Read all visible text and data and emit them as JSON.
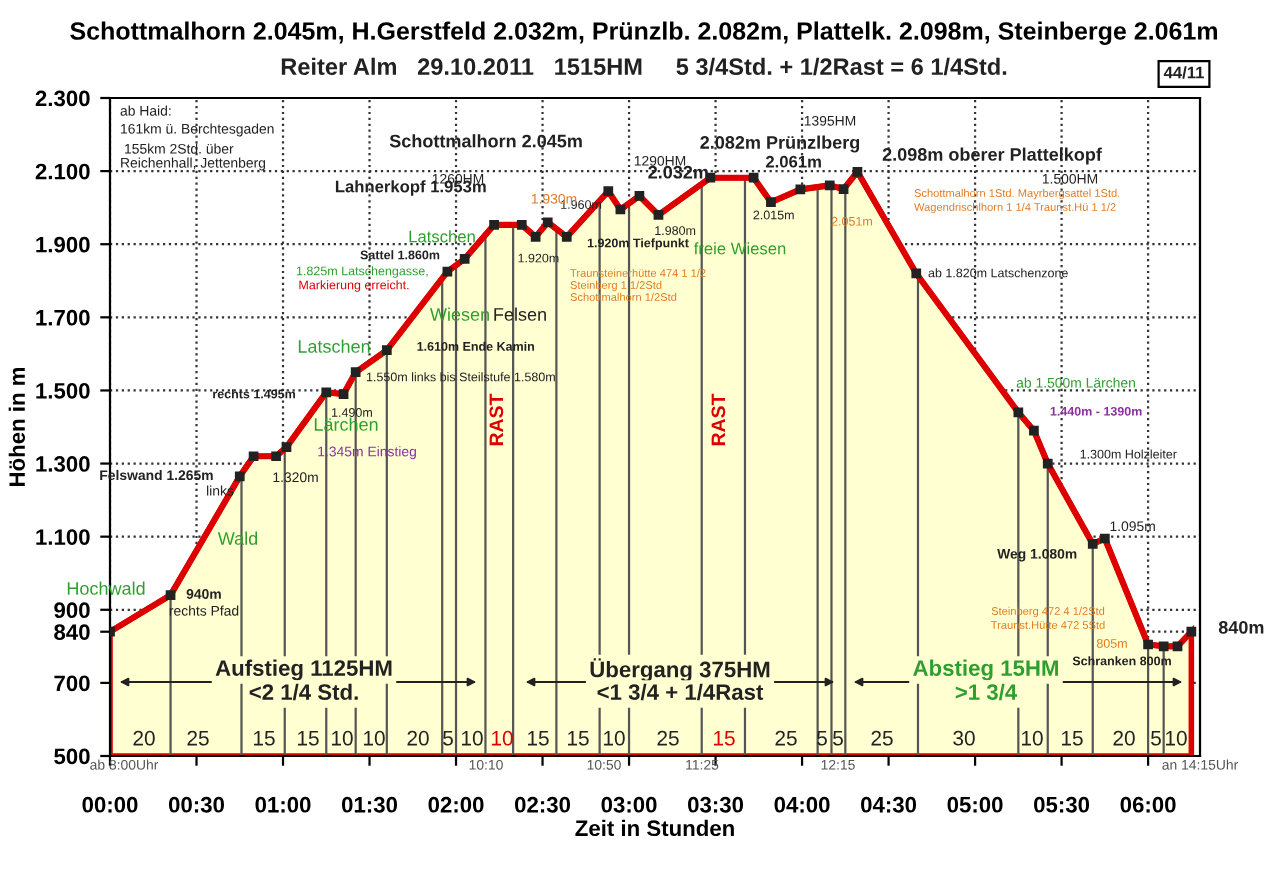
{
  "chart_data": {
    "type": "area",
    "title": "Schottmalhorn 2.045m, H.Gerstfeld 2.032m, Prünzlb. 2.082m, Plattelk. 2.098m, Steinberge 2.061m",
    "subtitle": "Reiter Alm   29.10.2011   1515HM     5 3/4Std. + 1/2Rast = 6 1/4Std.",
    "xlabel": "Zeit in Stunden",
    "ylabel": "Höhen in m",
    "x": [
      0,
      0.35,
      0.75,
      0.83,
      0.96,
      1.02,
      1.25,
      1.35,
      1.42,
      1.6,
      1.95,
      2.05,
      2.22,
      2.38,
      2.46,
      2.53,
      2.64,
      2.88,
      2.95,
      3.06,
      3.17,
      3.47,
      3.72,
      3.82,
      3.99,
      4.16,
      4.24,
      4.32,
      4.66,
      5.25,
      5.34,
      5.42,
      5.68,
      5.75,
      6.0,
      6.09,
      6.17,
      6.25
    ],
    "series": [
      {
        "color": "#dd0000",
        "values": [
          840,
          940,
          1265,
          1320,
          1320,
          1345,
          1495,
          1490,
          1550,
          1610,
          1825,
          1860,
          1953,
          1953,
          1920,
          1960,
          1920,
          2045,
          1995,
          2032,
          1980,
          2082,
          2082,
          2015,
          2050,
          2061,
          2051,
          2098,
          1820,
          1440,
          1390,
          1300,
          1080,
          1095,
          805,
          800,
          800,
          840
        ]
      }
    ],
    "marker": "square",
    "grid": true,
    "xlim": [
      0,
      6.3
    ],
    "ylim": [
      500,
      2300
    ],
    "xticks": [
      {
        "value": 0,
        "label": "00:00"
      },
      {
        "value": 0.5,
        "label": "00:30"
      },
      {
        "value": 1,
        "label": "01:00"
      },
      {
        "value": 1.5,
        "label": "01:30"
      },
      {
        "value": 2,
        "label": "02:00"
      },
      {
        "value": 2.5,
        "label": "02:30"
      },
      {
        "value": 3,
        "label": "03:00"
      },
      {
        "value": 3.5,
        "label": "03:30"
      },
      {
        "value": 4,
        "label": "04:00"
      },
      {
        "value": 4.5,
        "label": "04:30"
      },
      {
        "value": 5,
        "label": "05:00"
      },
      {
        "value": 5.5,
        "label": "05:30"
      },
      {
        "value": 6,
        "label": "06:00"
      }
    ],
    "yticks": [
      500,
      700,
      840,
      900,
      {
        "value": 1100,
        "label": "1.100"
      },
      {
        "value": 1300,
        "label": "1.300"
      },
      {
        "value": 1500,
        "label": "1.500"
      },
      {
        "value": 1700,
        "label": "1.700"
      },
      {
        "value": 1900,
        "label": "1.900"
      },
      {
        "value": 2100,
        "label": "2.100"
      },
      {
        "value": 2300,
        "label": "2.300"
      }
    ],
    "ref_lines": [
      {
        "axis": "x",
        "value": 0.35
      },
      {
        "axis": "x",
        "value": 0.76
      },
      {
        "axis": "x",
        "value": 1.01
      },
      {
        "axis": "x",
        "value": 1.25
      },
      {
        "axis": "x",
        "value": 1.42
      },
      {
        "axis": "x",
        "value": 1.6
      },
      {
        "axis": "x",
        "value": 1.92
      },
      {
        "axis": "x",
        "value": 2.0
      },
      {
        "axis": "x",
        "value": 2.17
      },
      {
        "axis": "x",
        "value": 2.33
      },
      {
        "axis": "x",
        "value": 2.58
      },
      {
        "axis": "x",
        "value": 2.83
      },
      {
        "axis": "x",
        "value": 3.0
      },
      {
        "axis": "x",
        "value": 3.42
      },
      {
        "axis": "x",
        "value": 3.67
      },
      {
        "axis": "x",
        "value": 4.09
      },
      {
        "axis": "x",
        "value": 4.17
      },
      {
        "axis": "x",
        "value": 4.25
      },
      {
        "axis": "x",
        "value": 4.67
      },
      {
        "axis": "x",
        "value": 5.25
      },
      {
        "axis": "x",
        "value": 5.42
      },
      {
        "axis": "x",
        "value": 5.68
      },
      {
        "axis": "x",
        "value": 6.0
      },
      {
        "axis": "x",
        "value": 6.09
      }
    ],
    "annotations": [
      "ab Haid:",
      "161km ü. Berchtesgaden",
      "155km 2Std. über",
      "Reichenhall, Jettenberg",
      "44/11",
      {
        "text": "Schottmalhorn 2.045m",
        "x": 2.88,
        "y": 2045
      },
      "1260HM",
      {
        "text": "Lahnerkopf 1.953m",
        "x": 2.22,
        "y": 1953
      },
      "1.930m",
      {
        "text": "1.960m",
        "x": 2.53,
        "y": 1960
      },
      {
        "text": "1.920m",
        "x": 2.46,
        "y": 1920
      },
      "1.920m Tiefpunkt",
      "1290HM",
      {
        "text": "2.032m",
        "x": 3.06,
        "y": 2032
      },
      {
        "text": "1.980m",
        "x": 3.17,
        "y": 1980
      },
      "freie Wiesen",
      "1395HM",
      "2.082m Prünzlberg",
      {
        "text": "2.061m",
        "x": 4.16,
        "y": 2061
      },
      {
        "text": "2.015m",
        "x": 3.82,
        "y": 2015
      },
      {
        "text": "2.051m",
        "x": 4.24,
        "y": 2051
      },
      "2.098m oberer Plattelkopf",
      "1.500HM",
      "Schottmalhorn 1Std. Mayrbergsattel 1Std.",
      "Wagendrischlhorn 1 1/4 Traunst.Hü 1 1/2",
      "Latschen",
      "Sattel 1.860m",
      "1.825m Latschengasse,",
      "Markierung erreicht.",
      "Traunsteinerhütte 474 1 1/2",
      "Steinberg 1 1/2Std",
      "Schottmalhorn 1/2Std",
      "Wiesen",
      "Felsen",
      "Latschen",
      {
        "text": "1.610m Ende Kamin",
        "x": 1.6,
        "y": 1610
      },
      "1.550m links bis Steilstufe 1.580m",
      {
        "text": "rechts 1.495m",
        "x": 1.25,
        "y": 1495
      },
      {
        "text": "1.490m",
        "x": 1.35,
        "y": 1490
      },
      "Lärchen",
      {
        "text": "1.345m Einstieg",
        "x": 1.02,
        "y": 1345
      },
      {
        "text": "1.320m",
        "x": 0.96,
        "y": 1320
      },
      {
        "text": "Felswand 1.265m",
        "x": 0.75,
        "y": 1265
      },
      "links",
      "Wald",
      "Hochwald",
      {
        "text": "940m",
        "x": 0.35,
        "y": 940
      },
      "rechts Pfad",
      "RAST",
      "RAST",
      "ab 1.820m Latschenzone",
      "ab 1.500m Lärchen",
      {
        "text": "1.440m - 1390m",
        "x": 5.25,
        "y": 1440
      },
      {
        "text": "1.300m Holzleiter",
        "x": 5.42,
        "y": 1300
      },
      {
        "text": "1.095m",
        "x": 5.75,
        "y": 1095
      },
      {
        "text": "Weg 1.080m",
        "x": 5.68,
        "y": 1080
      },
      "Steinberg 472 4 1/2Std",
      "Traunst.Hütte 472 5Std",
      {
        "text": "805m",
        "x": 6.0,
        "y": 805
      },
      "Schranken 800m",
      {
        "text": "840m",
        "x": 6.25,
        "y": 840
      },
      "Aufstieg 1125HM",
      "<2 1/4 Std.",
      "Übergang 375HM",
      "<1 3/4 + 1/4Rast",
      "Abstieg 15HM",
      ">1 3/4",
      "ab 8:00Uhr",
      "10:10",
      "10:50",
      "11:25",
      "12:15",
      "an 14:15Uhr",
      "20",
      "25",
      "15",
      "15",
      "10",
      "10",
      "20",
      "5",
      "10",
      "10",
      "15",
      "15",
      "10",
      "25",
      "15",
      "25",
      "5",
      "5",
      "25",
      "30",
      "10",
      "15",
      "20",
      "5",
      "10"
    ]
  }
}
